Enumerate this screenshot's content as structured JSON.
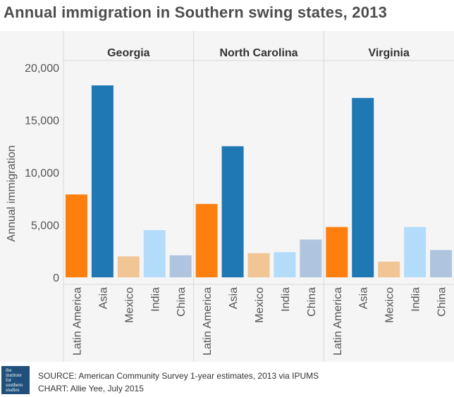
{
  "title": "Annual immigration in Southern swing states, 2013",
  "footer": {
    "source": "SOURCE: American Community Survey 1-year estimates, 2013 via IPUMS",
    "credit": "CHART: Allie Yee, July 2015",
    "logo_lines": [
      "the",
      "institute",
      "for",
      "southern",
      "studies"
    ]
  },
  "chart_data": {
    "type": "bar",
    "title": "Annual immigration in Southern swing states, 2013",
    "ylabel": "Annual immigration",
    "xlabel": "",
    "ylim": [
      0,
      20000
    ],
    "yticks": [
      0,
      5000,
      10000,
      15000,
      20000
    ],
    "ytick_labels": [
      "0",
      "5,000",
      "10,000",
      "15,000",
      "20,000"
    ],
    "grid": false,
    "categories": [
      "Latin America",
      "Asia",
      "Mexico",
      "India",
      "China"
    ],
    "colors": {
      "Latin America": "#ff7f0e",
      "Asia": "#1f77b4",
      "Mexico": "#f2c595",
      "India": "#b3dcfa",
      "China": "#afc4de"
    },
    "panels": [
      {
        "name": "Georgia",
        "values": [
          7900,
          18300,
          2000,
          4500,
          2100
        ]
      },
      {
        "name": "North Carolina",
        "values": [
          7000,
          12500,
          2300,
          2400,
          3600
        ]
      },
      {
        "name": "Virginia",
        "values": [
          4800,
          17100,
          1500,
          4800,
          2600
        ]
      }
    ]
  }
}
